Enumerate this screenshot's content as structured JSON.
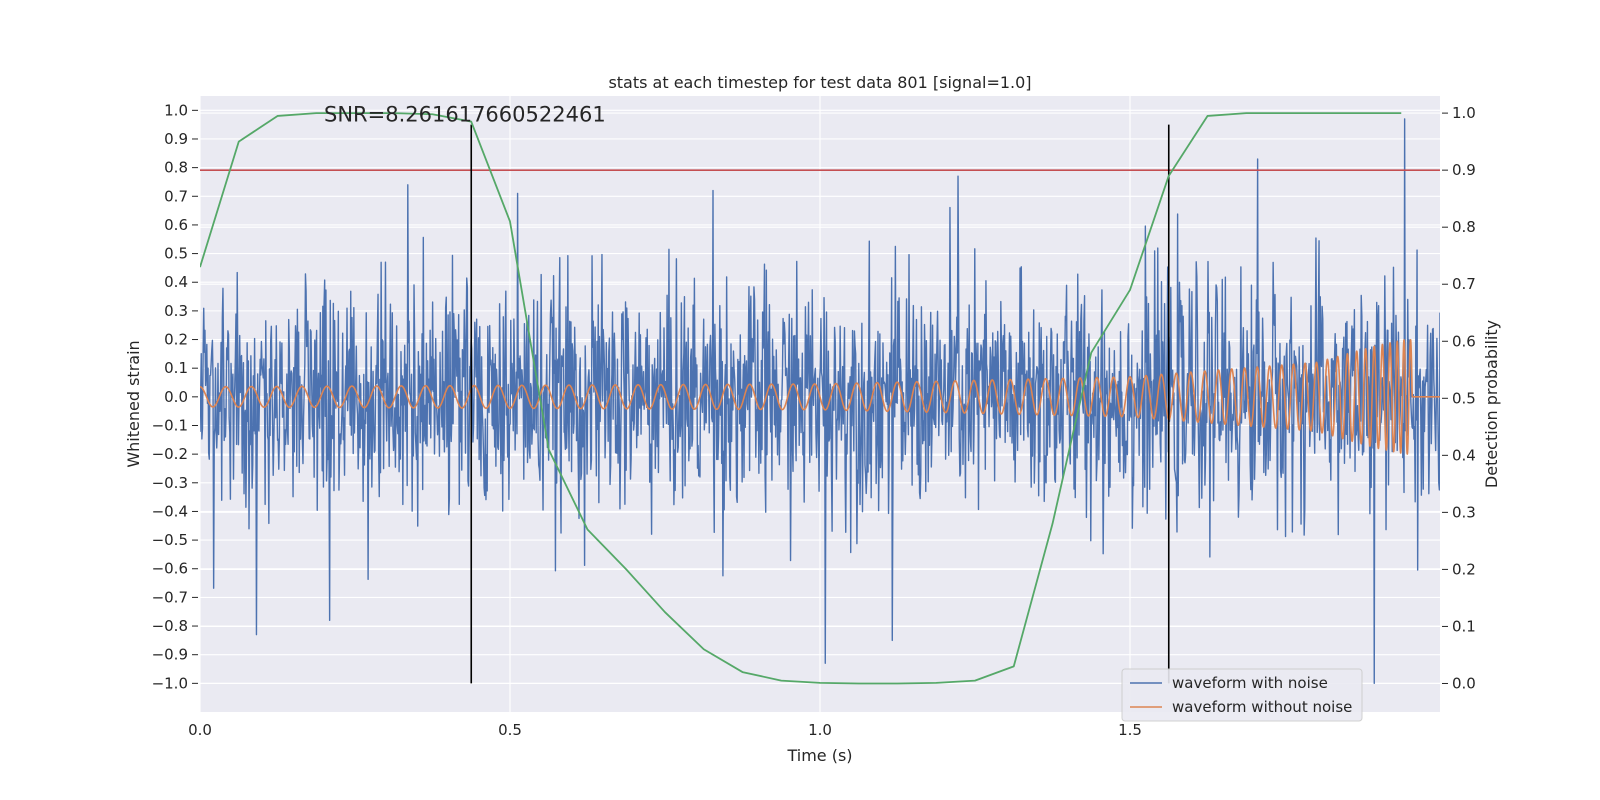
{
  "chart_data": {
    "type": "line",
    "title": "stats at each timestep for test data 801 [signal=1.0]",
    "xlabel": "Time (s)",
    "ylabel": "Whitened strain",
    "y2label": "Detection probability",
    "xlim": [
      0.0,
      2.0
    ],
    "ylim": [
      -1.1,
      1.05
    ],
    "y2lim": [
      -0.05,
      1.03
    ],
    "xticks": [
      0.0,
      0.5,
      1.0,
      1.5
    ],
    "xtick_labels": [
      "0.0",
      "0.5",
      "1.0",
      "1.5"
    ],
    "yticks": [
      1.0,
      0.9,
      0.8,
      0.7,
      0.6,
      0.5,
      0.4,
      0.3,
      0.2,
      0.1,
      0.0,
      -0.1,
      -0.2,
      -0.3,
      -0.4,
      -0.5,
      -0.6,
      -0.7,
      -0.8,
      -0.9,
      -1.0
    ],
    "ytick_labels": [
      "1.0",
      "0.9",
      "0.8",
      "0.7",
      "0.6",
      "0.5",
      "0.4",
      "0.3",
      "0.2",
      "0.1",
      "0.0",
      "−0.1",
      "−0.2",
      "−0.3",
      "−0.4",
      "−0.5",
      "−0.6",
      "−0.7",
      "−0.8",
      "−0.9",
      "−1.0"
    ],
    "y2ticks": [
      1.0,
      0.9,
      0.8,
      0.7,
      0.6,
      0.5,
      0.4,
      0.3,
      0.2,
      0.1,
      0.0
    ],
    "y2tick_labels": [
      "1.0",
      "0.9",
      "0.8",
      "0.7",
      "0.6",
      "0.5",
      "0.4",
      "0.3",
      "0.2",
      "0.1",
      "0.0"
    ],
    "grid": true,
    "legend_position": "lower-right",
    "annotation": "SNR=8.261617660522461",
    "annotation_at": [
      0.2,
      0.95
    ],
    "threshold": {
      "axis": "secondary",
      "value": 0.9,
      "color": "#c44e52"
    },
    "vlines": [
      {
        "x": 0.4375,
        "ymin": -1.0,
        "ymax": 0.95,
        "color": "#000000"
      },
      {
        "x": 1.5625,
        "ymin": -1.0,
        "ymax": 0.95,
        "color": "#000000"
      }
    ],
    "series": [
      {
        "name": "waveform with noise",
        "axis": "primary",
        "color": "#4c72b0",
        "kind": "noise",
        "sample_count": 2000,
        "approx_std": 0.2,
        "range": [
          -1.0,
          0.97
        ],
        "notable_points": [
          {
            "x": 0.091,
            "y": -0.83
          },
          {
            "x": 0.209,
            "y": -0.78
          },
          {
            "x": 0.335,
            "y": 0.74
          },
          {
            "x": 0.512,
            "y": 0.71
          },
          {
            "x": 0.827,
            "y": 0.72
          },
          {
            "x": 1.009,
            "y": -0.93
          },
          {
            "x": 1.117,
            "y": -0.85
          },
          {
            "x": 1.223,
            "y": 0.77
          },
          {
            "x": 1.706,
            "y": 0.83
          },
          {
            "x": 1.894,
            "y": -1.0
          },
          {
            "x": 1.943,
            "y": 0.97
          }
        ]
      },
      {
        "name": "waveform without noise",
        "axis": "primary",
        "color": "#dd8452",
        "kind": "chirp",
        "samples": [
          {
            "t": 0.0,
            "amplitude": 0.035,
            "cycles_per_s": 24
          },
          {
            "t": 0.5,
            "amplitude": 0.04,
            "cycles_per_s": 26
          },
          {
            "t": 1.0,
            "amplitude": 0.045,
            "cycles_per_s": 29
          },
          {
            "t": 1.5,
            "amplitude": 0.07,
            "cycles_per_s": 38
          },
          {
            "t": 1.8,
            "amplitude": 0.12,
            "cycles_per_s": 55
          },
          {
            "t": 1.9,
            "amplitude": 0.18,
            "cycles_per_s": 75
          },
          {
            "t": 1.945,
            "amplitude": 0.2,
            "cycles_per_s": 95
          }
        ],
        "ends_at": 1.955,
        "tail_value": 0.0
      },
      {
        "name": "",
        "axis": "secondary",
        "color": "#55a868",
        "x": [
          0.0,
          0.0625,
          0.125,
          0.1875,
          0.25,
          0.3125,
          0.375,
          0.4375,
          0.5,
          0.5625,
          0.625,
          0.6875,
          0.75,
          0.8125,
          0.875,
          0.9375,
          1.0,
          1.0625,
          1.125,
          1.1875,
          1.25,
          1.3125,
          1.375,
          1.4375,
          1.5,
          1.5625,
          1.625,
          1.6875,
          1.75,
          1.8125,
          1.875,
          1.9375
        ],
        "y": [
          0.73,
          0.95,
          0.995,
          1.0,
          1.0,
          1.0,
          0.998,
          0.985,
          0.81,
          0.41,
          0.27,
          0.2,
          0.125,
          0.06,
          0.02,
          0.005,
          0.001,
          0.0,
          0.0,
          0.001,
          0.005,
          0.03,
          0.28,
          0.58,
          0.69,
          0.89,
          0.995,
          1.0,
          1.0,
          1.0,
          1.0,
          1.0
        ]
      }
    ]
  }
}
